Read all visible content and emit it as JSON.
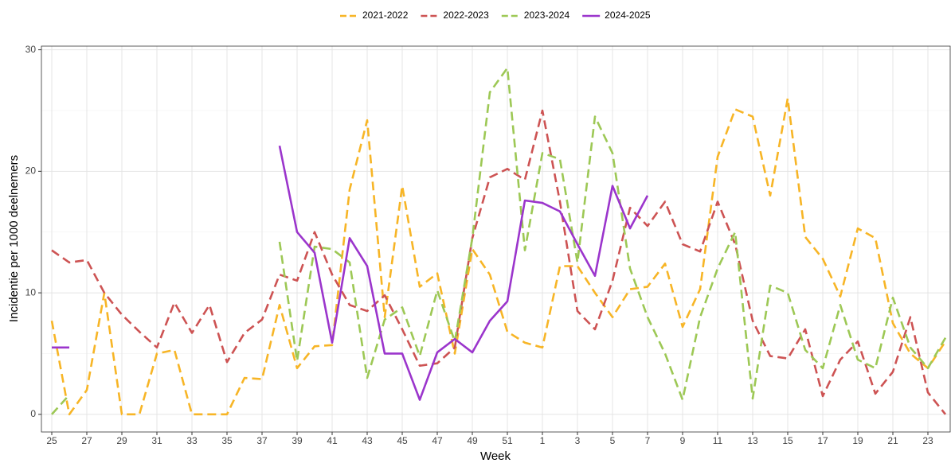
{
  "chart_data": {
    "type": "line",
    "x_label": "Week",
    "y_label": "Incidentie per 1000 deelnemers",
    "categories": [
      "25",
      null,
      "27",
      null,
      "29",
      null,
      "31",
      null,
      "33",
      null,
      "35",
      null,
      "37",
      null,
      "39",
      null,
      "41",
      null,
      "43",
      null,
      "45",
      null,
      "47",
      null,
      "49",
      null,
      "51",
      null,
      "1",
      null,
      "3",
      null,
      "5",
      null,
      "7",
      null,
      "9",
      null,
      "11",
      null,
      "13",
      null,
      "15",
      null,
      "17",
      null,
      "19",
      null,
      "21",
      null,
      "23",
      null
    ],
    "series": [
      {
        "name": "2021-2022",
        "color": "#f7b526",
        "dashed": true,
        "values": [
          7.7,
          0,
          2,
          10,
          0,
          0,
          5,
          5.3,
          0,
          0,
          0,
          3,
          2.9,
          9,
          3.8,
          5.6,
          5.7,
          18.5,
          24.2,
          8,
          18.8,
          10.5,
          11.6,
          5,
          13.6,
          11.5,
          6.8,
          5.9,
          5.5,
          12.2,
          12.2,
          10,
          8,
          10.3,
          10.5,
          12.4,
          7.2,
          10.3,
          21.2,
          25.1,
          24.5,
          18,
          26,
          14.6,
          12.8,
          9.7,
          15.3,
          14.5,
          7.5,
          5,
          3.8,
          6
        ]
      },
      {
        "name": "2022-2023",
        "color": "#cd5353",
        "dashed": true,
        "values": [
          13.5,
          12.5,
          12.7,
          10,
          8.2,
          6.8,
          5.5,
          9.2,
          6.7,
          9,
          4.3,
          6.7,
          7.8,
          11.5,
          11,
          15,
          11.5,
          9,
          8.5,
          9.8,
          7,
          4,
          4.2,
          5.5,
          14.5,
          19.5,
          20.2,
          19.3,
          25,
          17.5,
          8.5,
          7,
          11,
          17,
          15.5,
          17.5,
          14,
          13.4,
          17.5,
          14,
          7.7,
          4.8,
          4.6,
          7,
          1.5,
          4.5,
          6,
          1.7,
          3.5,
          8,
          1.8,
          0
        ]
      },
      {
        "name": "2023-2024",
        "color": "#9dc855",
        "dashed": true,
        "values": [
          0,
          1.6,
          null,
          null,
          null,
          null,
          null,
          null,
          null,
          null,
          null,
          null,
          null,
          14.2,
          4.4,
          13.8,
          13.6,
          12.5,
          3,
          7.8,
          8.8,
          4.8,
          10.2,
          6,
          14.5,
          26.5,
          28.5,
          13.5,
          21.5,
          21,
          12.5,
          24.5,
          21.5,
          12,
          8,
          5,
          1.2,
          8,
          12,
          15,
          1.3,
          10.6,
          10,
          5.3,
          3.8,
          9,
          4.5,
          3.8,
          9.6,
          5.5,
          3.8,
          6.3
        ]
      },
      {
        "name": "2024-2025",
        "color": "#9b35cc",
        "dashed": false,
        "values": [
          5.5,
          5.5,
          null,
          null,
          null,
          null,
          null,
          null,
          null,
          null,
          null,
          null,
          null,
          22.1,
          15,
          13.3,
          5.9,
          14.5,
          12.2,
          5,
          5,
          1.2,
          5.1,
          6.2,
          5.1,
          7.7,
          9.3,
          17.6,
          17.4,
          16.7,
          14,
          11.4,
          18.8,
          15.3,
          18,
          null,
          null,
          null,
          null,
          null,
          null,
          null,
          null,
          null,
          null,
          null,
          null,
          null,
          null,
          null,
          null,
          null
        ]
      }
    ],
    "ylim": [
      -1.45,
      30.3
    ],
    "yticks": [
      0,
      10,
      20,
      30
    ],
    "grid": true,
    "legend": "top"
  }
}
